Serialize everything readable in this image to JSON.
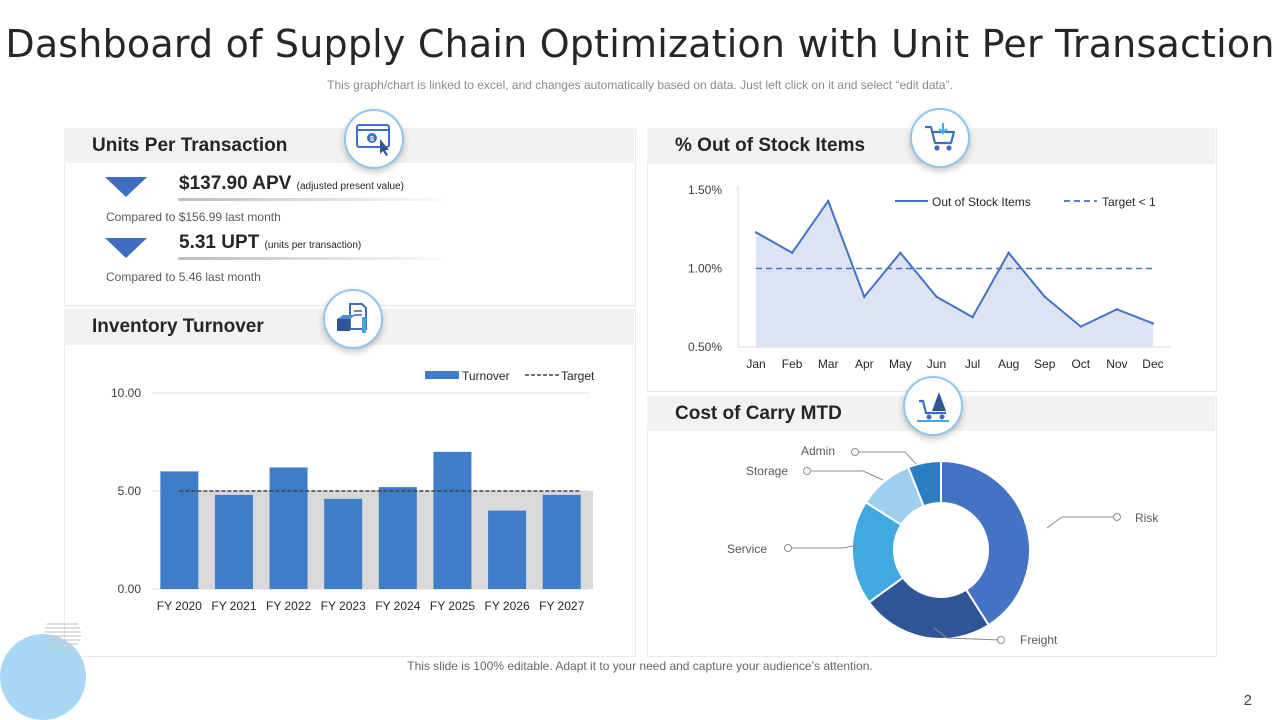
{
  "page": {
    "title": "Dashboard of Supply Chain Optimization with Unit Per Transaction",
    "subtitle": "This graph/chart is linked to excel, and changes automatically based on data. Just left click on it and select “edit data”.",
    "footer": "This slide is 100% editable. Adapt it to your need and capture your audience’s attention.",
    "page_number": "2"
  },
  "units_panel": {
    "title": "Units Per Transaction",
    "icon": "online-payment-icon",
    "kpis": [
      {
        "value": "$137.90 APV",
        "note": "(adjusted present value)",
        "comparison": "Compared  to $156.99  last month",
        "trend": "down-arrow-icon"
      },
      {
        "value": "5.31 UPT",
        "note": "(units per transaction)",
        "comparison": "Compared  to 5.46 last month",
        "trend": "down-arrow-icon"
      }
    ]
  },
  "stock_panel": {
    "title": "% Out of Stock Items",
    "icon": "shopping-cart-icon"
  },
  "inventory_panel": {
    "title": "Inventory Turnover",
    "icon": "inventory-boxes-icon"
  },
  "carry_panel": {
    "title": "Cost of Carry MTD",
    "icon": "carry-cart-icon"
  },
  "colors": {
    "primary": "#4472c4",
    "dark_blue": "#2f5597",
    "mid_blue": "#3f7dc8",
    "sky_blue": "#41a9e1",
    "light_blue": "#9dd0ef",
    "area_fill": "#dce4f4",
    "target_shadow": "#d9d9d9"
  },
  "chart_data": [
    {
      "id": "out_of_stock",
      "type": "line",
      "categories": [
        "Jan",
        "Feb",
        "Mar",
        "Apr",
        "May",
        "Jun",
        "Jul",
        "Aug",
        "Sep",
        "Oct",
        "Nov",
        "Dec"
      ],
      "series": [
        {
          "name": "Out of Stock Items",
          "values": [
            1.23,
            1.1,
            1.43,
            0.82,
            1.1,
            0.82,
            0.69,
            1.1,
            0.82,
            0.63,
            0.74,
            0.65
          ],
          "style": "solid line with shaded area"
        },
        {
          "name": "Target < 1",
          "values": [
            1.0,
            1.0,
            1.0,
            1.0,
            1.0,
            1.0,
            1.0,
            1.0,
            1.0,
            1.0,
            1.0,
            1.0
          ],
          "style": "dashed"
        }
      ],
      "ylim": [
        0.5,
        1.5
      ],
      "yticks": [
        "0.50%",
        "1.00%",
        "1.50%"
      ],
      "legend": "top-right",
      "grid": false
    },
    {
      "id": "inventory_turnover",
      "type": "bar",
      "categories": [
        "FY 2020",
        "FY 2021",
        "FY 2022",
        "FY 2023",
        "FY 2024",
        "FY 2025",
        "FY 2026",
        "FY 2027"
      ],
      "series": [
        {
          "name": "Turnover",
          "values": [
            6.0,
            4.8,
            6.2,
            4.6,
            5.2,
            7.0,
            4.0,
            4.8
          ]
        },
        {
          "name": "Target",
          "values": [
            5.0,
            5.0,
            5.0,
            5.0,
            5.0,
            5.0,
            5.0,
            5.0
          ],
          "style": "dashed"
        }
      ],
      "ylim": [
        0,
        10
      ],
      "yticks": [
        "0.00",
        "5.00",
        "10.00"
      ],
      "legend": "top-right",
      "grid": true
    },
    {
      "id": "cost_of_carry",
      "type": "pie",
      "donut": true,
      "categories": [
        "Risk",
        "Freight",
        "Service",
        "Storage",
        "Admin"
      ],
      "values": [
        41,
        24,
        19,
        10,
        6
      ],
      "colors": [
        "#4472c4",
        "#2f5597",
        "#41a9e1",
        "#9dd0ef",
        "#2b7fc1"
      ]
    }
  ]
}
